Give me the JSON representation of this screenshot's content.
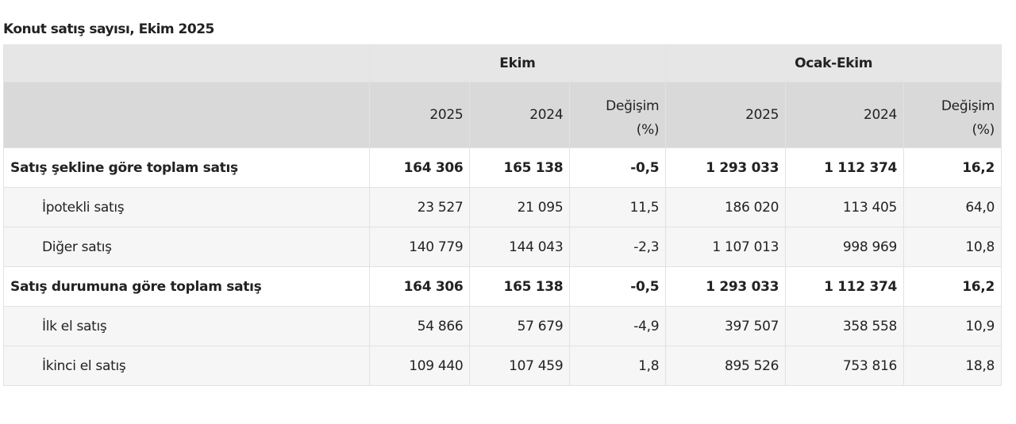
{
  "title": "Konut satış sayısı, Ekim 2025",
  "header": {
    "groups": [
      "Ekim",
      "Ocak-Ekim"
    ],
    "cols": [
      "2025",
      "2024",
      "Değişim (%)",
      "2025",
      "2024",
      "Değişim (%)"
    ]
  },
  "rows": [
    {
      "label": "Satış şekline göre toplam satış",
      "type": "total",
      "values": [
        "164 306",
        "165 138",
        "-0,5",
        "1 293 033",
        "1 112 374",
        "16,2"
      ]
    },
    {
      "label": "İpotekli satış",
      "type": "sub",
      "values": [
        "23 527",
        "21 095",
        "11,5",
        "186 020",
        "113 405",
        "64,0"
      ]
    },
    {
      "label": "Diğer satış",
      "type": "sub",
      "values": [
        "140 779",
        "144 043",
        "-2,3",
        "1 107 013",
        "998 969",
        "10,8"
      ]
    },
    {
      "label": "Satış durumuna göre toplam satış",
      "type": "total",
      "values": [
        "164 306",
        "165 138",
        "-0,5",
        "1 293 033",
        "1 112 374",
        "16,2"
      ]
    },
    {
      "label": "İlk el satış",
      "type": "sub",
      "values": [
        "54 866",
        "57 679",
        "-4,9",
        "397 507",
        "358 558",
        "10,9"
      ]
    },
    {
      "label": "İkinci el satış",
      "type": "sub",
      "values": [
        "109 440",
        "107 459",
        "1,8",
        "895 526",
        "753 816",
        "18,8"
      ]
    }
  ]
}
